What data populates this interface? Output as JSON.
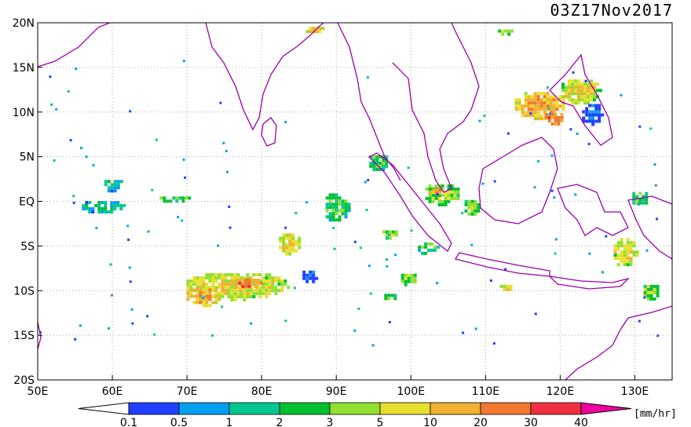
{
  "header": {
    "timestamp": "03Z17Nov2017"
  },
  "map": {
    "lon_range": [
      50,
      135
    ],
    "lat_range": [
      -20,
      20
    ],
    "grid": "dotted",
    "lon_ticks": [
      {
        "value": 50,
        "label": "50E"
      },
      {
        "value": 60,
        "label": "60E"
      },
      {
        "value": 70,
        "label": "70E"
      },
      {
        "value": 80,
        "label": "80E"
      },
      {
        "value": 90,
        "label": "90E"
      },
      {
        "value": 100,
        "label": "100E"
      },
      {
        "value": 110,
        "label": "110E"
      },
      {
        "value": 120,
        "label": "120E"
      },
      {
        "value": 130,
        "label": "130E"
      }
    ],
    "lat_ticks": [
      {
        "value": 20,
        "label": "20N"
      },
      {
        "value": 15,
        "label": "15N"
      },
      {
        "value": 10,
        "label": "10N"
      },
      {
        "value": 5,
        "label": "5N"
      },
      {
        "value": 0,
        "label": "EQ"
      },
      {
        "value": -5,
        "label": "5S"
      },
      {
        "value": -10,
        "label": "10S"
      },
      {
        "value": -15,
        "label": "15S"
      },
      {
        "value": -20,
        "label": "20S"
      }
    ],
    "coastline_color": "#9900aa"
  },
  "colorbar": {
    "unit": "[mm/hr]",
    "colors": [
      "#2040ff",
      "#00a0f0",
      "#00c890",
      "#00c030",
      "#90e030",
      "#e8e030",
      "#f0b030",
      "#f07830",
      "#f03040"
    ],
    "low_color": "#ffffff",
    "high_color": "#f000a0",
    "labels": [
      "0.1",
      "0.5",
      "1",
      "2",
      "3",
      "5",
      "10",
      "20",
      "30",
      "40"
    ]
  },
  "rain_areas": [
    {
      "lon": 76.5,
      "lat": -9.3,
      "w": 14,
      "h": 3.2,
      "level": 5
    },
    {
      "lon": 72.0,
      "lat": -10.5,
      "w": 5,
      "h": 2.2,
      "level": 6
    },
    {
      "lon": 78.0,
      "lat": -9.0,
      "w": 4,
      "h": 1.4,
      "level": 7
    },
    {
      "lon": 86.3,
      "lat": -8.2,
      "w": 2.5,
      "h": 1.6,
      "level": 0
    },
    {
      "lon": 83.5,
      "lat": -4.5,
      "w": 3.2,
      "h": 2.5,
      "level": 5
    },
    {
      "lon": 89.9,
      "lat": -0.5,
      "w": 3.5,
      "h": 3.5,
      "level": 3
    },
    {
      "lon": 58.5,
      "lat": -0.4,
      "w": 6,
      "h": 1.6,
      "level": 2
    },
    {
      "lon": 60.0,
      "lat": 2.0,
      "w": 3,
      "h": 1.5,
      "level": 2
    },
    {
      "lon": 68.0,
      "lat": 0.5,
      "w": 5,
      "h": 0.8,
      "level": 3
    },
    {
      "lon": 104.0,
      "lat": 1.0,
      "w": 5,
      "h": 2.5,
      "level": 4
    },
    {
      "lon": 103.0,
      "lat": 1.3,
      "w": 2,
      "h": 1.0,
      "level": 6
    },
    {
      "lon": 108.0,
      "lat": -0.5,
      "w": 2.5,
      "h": 2,
      "level": 4
    },
    {
      "lon": 117.0,
      "lat": 11.0,
      "w": 7,
      "h": 3.2,
      "level": 6
    },
    {
      "lon": 122.5,
      "lat": 12.5,
      "w": 5.5,
      "h": 3,
      "level": 5
    },
    {
      "lon": 124.0,
      "lat": 10.0,
      "w": 3,
      "h": 2.5,
      "level": 0
    },
    {
      "lon": 119.0,
      "lat": 9.5,
      "w": 3,
      "h": 1.5,
      "level": 7
    },
    {
      "lon": 128.5,
      "lat": -5.5,
      "w": 3.5,
      "h": 3.5,
      "level": 5
    },
    {
      "lon": 132.0,
      "lat": -10.0,
      "w": 2.5,
      "h": 2,
      "level": 4
    },
    {
      "lon": 130.5,
      "lat": 0.5,
      "w": 2.5,
      "h": 1.8,
      "level": 3
    },
    {
      "lon": 99.5,
      "lat": -8.5,
      "w": 2.5,
      "h": 1.5,
      "level": 4
    },
    {
      "lon": 97.0,
      "lat": -10.5,
      "w": 2,
      "h": 1,
      "level": 3
    },
    {
      "lon": 95.5,
      "lat": 4.5,
      "w": 3,
      "h": 2,
      "level": 3
    },
    {
      "lon": 102.0,
      "lat": -5.0,
      "w": 3,
      "h": 1.5,
      "level": 3
    },
    {
      "lon": 97.0,
      "lat": -3.5,
      "w": 2.5,
      "h": 1.2,
      "level": 4
    },
    {
      "lon": 112.5,
      "lat": -9.5,
      "w": 2,
      "h": 1,
      "level": 5
    },
    {
      "lon": 112.5,
      "lat": 19.2,
      "w": 2.5,
      "h": 0.8,
      "level": 4
    },
    {
      "lon": 87.0,
      "lat": 19.4,
      "w": 3,
      "h": 1,
      "level": 5
    }
  ]
}
